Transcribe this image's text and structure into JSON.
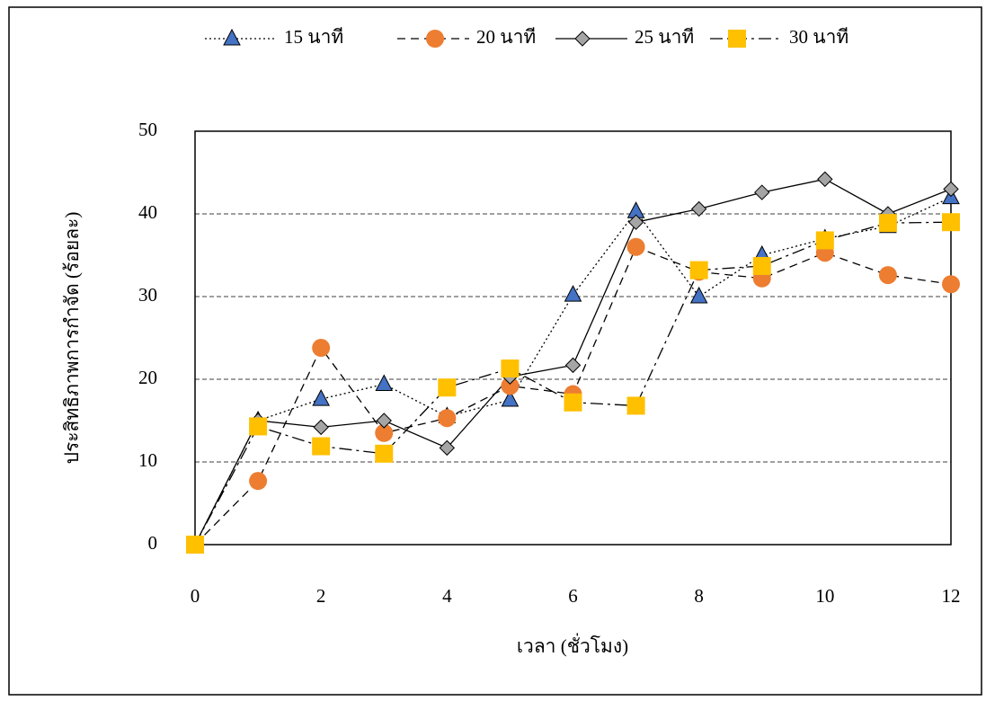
{
  "chart_data": {
    "type": "line",
    "x_label": "เวลา (ชั่วโมง)",
    "y_label": "ประสิทธิภาพการกำจัด (ร้อยละ)",
    "x": [
      0,
      1,
      2,
      3,
      4,
      5,
      6,
      7,
      8,
      9,
      10,
      11,
      12
    ],
    "series": [
      {
        "name": "15 นาที",
        "color": "#4472c4",
        "values": [
          0,
          15,
          17.6,
          19.4,
          15.5,
          17.5,
          30.2,
          40.3,
          30,
          35,
          37,
          38.5,
          42
        ]
      },
      {
        "name": "20 นาที",
        "color": "#ed7d31",
        "values": [
          0,
          7.7,
          23.8,
          13.5,
          15.3,
          19.2,
          18.2,
          36,
          33,
          32.2,
          35.3,
          32.6,
          31.5
        ]
      },
      {
        "name": "25 นาที",
        "color": "#a5a5a5",
        "values": [
          0,
          15,
          14.2,
          15,
          11.7,
          20.3,
          21.7,
          39,
          40.6,
          42.6,
          44.2,
          40,
          43
        ]
      },
      {
        "name": "30 นาที",
        "color": "#ffc000",
        "values": [
          0,
          14.3,
          11.9,
          11,
          19,
          21.3,
          17.2,
          16.8,
          33.2,
          33.7,
          36.8,
          38.9,
          39
        ]
      }
    ],
    "xlim": [
      0,
      12
    ],
    "xticks": [
      0,
      2,
      4,
      6,
      8,
      10,
      12
    ],
    "ylim": [
      0,
      50
    ],
    "yticks": [
      0,
      10,
      20,
      30,
      40,
      50
    ],
    "grid": true,
    "legend": "top"
  }
}
